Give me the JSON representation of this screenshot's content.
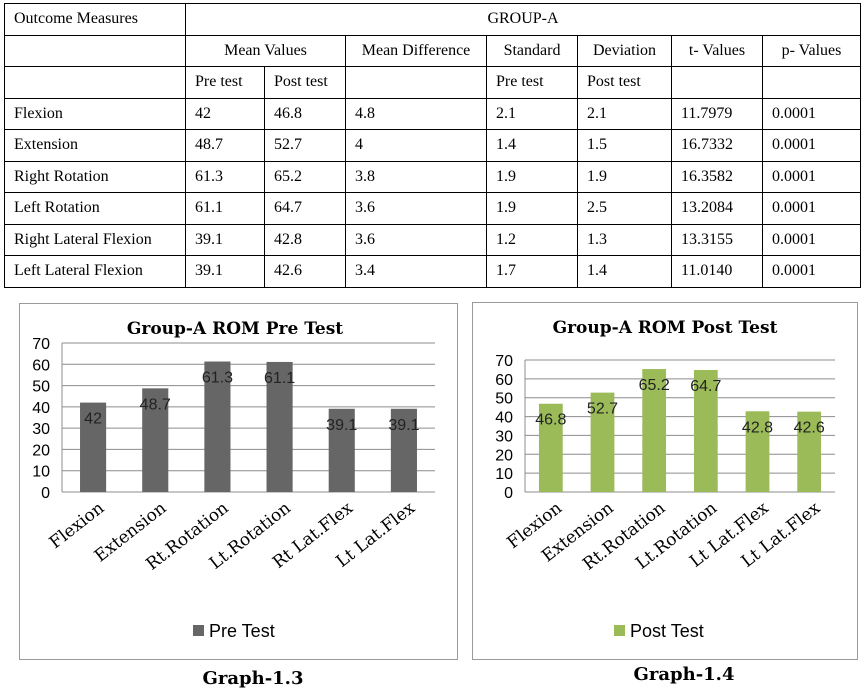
{
  "table": {
    "outcome_header": "Outcome Measures",
    "group_header": "GROUP-A",
    "mean_values_header": "Mean Values",
    "mean_difference_header": "Mean Difference",
    "standard_header": "Standard",
    "deviation_header": "Deviation",
    "t_values_header": "t- Values",
    "p_values_header": "p- Values",
    "pre_test_label": "Pre test",
    "post_test_label": "Post test",
    "rows": [
      {
        "measure": "Flexion",
        "mean_pre": "42",
        "mean_post": "46.8",
        "mean_diff": "4.8",
        "sd_pre": "2.1",
        "sd_post": "2.1",
        "t": "11.7979",
        "p": "0.0001"
      },
      {
        "measure": "Extension",
        "mean_pre": "48.7",
        "mean_post": "52.7",
        "mean_diff": "4",
        "sd_pre": "1.4",
        "sd_post": "1.5",
        "t": "16.7332",
        "p": "0.0001"
      },
      {
        "measure": "Right Rotation",
        "mean_pre": "61.3",
        "mean_post": "65.2",
        "mean_diff": "3.8",
        "sd_pre": "1.9",
        "sd_post": "1.9",
        "t": "16.3582",
        "p": "0.0001"
      },
      {
        "measure": "Left Rotation",
        "mean_pre": "61.1",
        "mean_post": "64.7",
        "mean_diff": "3.6",
        "sd_pre": "1.9",
        "sd_post": "2.5",
        "t": "13.2084",
        "p": "0.0001"
      },
      {
        "measure": "Right Lateral Flexion",
        "mean_pre": "39.1",
        "mean_post": "42.8",
        "mean_diff": "3.6",
        "sd_pre": "1.2",
        "sd_post": "1.3",
        "t": "13.3155",
        "p": "0.0001"
      },
      {
        "measure": "Left Lateral Flexion",
        "mean_pre": "39.1",
        "mean_post": "42.6",
        "mean_diff": "3.4",
        "sd_pre": "1.7",
        "sd_post": "1.4",
        "t": "11.0140",
        "p": "0.0001"
      }
    ]
  },
  "chart_data": [
    {
      "type": "bar",
      "title": "Group-A ROM Pre Test",
      "categories": [
        "Flexion",
        "Extension",
        "Rt.Rotation",
        "Lt.Rotation",
        "Rt Lat.Flex",
        "Lt Lat.Flex"
      ],
      "series": [
        {
          "name": "Pre Test",
          "values": [
            42,
            48.7,
            61.3,
            61.1,
            39.1,
            39.1
          ],
          "color": "#666666"
        }
      ],
      "ylim": [
        0,
        70
      ],
      "yticks": [
        0,
        10,
        20,
        30,
        40,
        50,
        60,
        70
      ],
      "grid": true,
      "legend_position": "bottom",
      "caption": "Graph-1.3"
    },
    {
      "type": "bar",
      "title": "Group-A ROM Post Test",
      "categories": [
        "Flexion",
        "Extension",
        "Rt.Rotation",
        "Lt.Rotation",
        "Lt Lat.Flex",
        "Lt Lat.Flex"
      ],
      "series": [
        {
          "name": "Post Test",
          "values": [
            46.8,
            52.7,
            65.2,
            64.7,
            42.8,
            42.6
          ],
          "color": "#9bbb59"
        }
      ],
      "ylim": [
        0,
        70
      ],
      "yticks": [
        0,
        10,
        20,
        30,
        40,
        50,
        60,
        70
      ],
      "grid": true,
      "legend_position": "bottom",
      "caption": "Graph-1.4"
    }
  ]
}
